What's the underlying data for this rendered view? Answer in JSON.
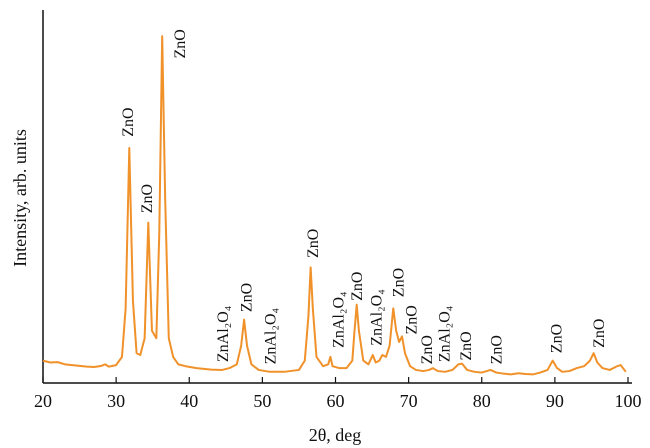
{
  "chart_data": {
    "type": "line",
    "xlabel": "2θ, deg",
    "ylabel": "Intensity, arb. units",
    "xlim": [
      20,
      100
    ],
    "xticks": [
      20,
      30,
      40,
      50,
      60,
      70,
      80,
      90,
      100
    ],
    "ylim": [
      0,
      100
    ],
    "x": [
      20,
      21,
      22,
      23,
      24,
      25,
      26,
      27,
      28,
      28.5,
      29,
      30,
      30.8,
      31.3,
      31.8,
      32.3,
      32.8,
      33.3,
      33.9,
      34.4,
      34.9,
      35.5,
      35.9,
      36.3,
      36.7,
      37.2,
      37.8,
      38.5,
      39.5,
      41,
      43,
      44.5,
      45.5,
      46.5,
      47.1,
      47.5,
      47.9,
      48.5,
      49.5,
      51,
      53,
      55,
      55.8,
      56.3,
      56.6,
      56.9,
      57.4,
      58.3,
      59,
      59.3,
      59.6,
      60.5,
      61.5,
      62.3,
      62.6,
      62.9,
      63.2,
      63.8,
      64.5,
      65.1,
      65.5,
      66,
      66.4,
      66.9,
      67.4,
      67.9,
      68.3,
      68.7,
      69.1,
      69.5,
      70.2,
      71,
      72,
      72.8,
      73.3,
      74,
      75,
      76,
      76.8,
      77.3,
      78,
      79,
      80,
      81.2,
      82,
      83,
      84,
      85,
      86,
      87,
      88,
      89,
      89.7,
      90.3,
      91,
      92,
      93,
      94,
      94.8,
      95.3,
      95.8,
      96.5,
      97.5,
      98.5,
      99,
      99.7
    ],
    "series": [
      {
        "color": "#f0912a",
        "values": [
          6,
          5.5,
          5.6,
          5,
          4.8,
          4.6,
          4.4,
          4.3,
          4.6,
          5,
          4.4,
          4.8,
          7,
          20,
          63,
          22,
          8,
          7.5,
          12,
          43,
          14,
          12,
          40,
          93,
          50,
          12,
          7,
          5,
          4.5,
          4,
          3.6,
          3.5,
          4,
          5,
          10,
          17,
          10,
          5,
          3.5,
          3,
          3,
          3.5,
          6,
          18,
          31,
          20,
          7,
          4.5,
          5,
          7,
          4.5,
          4,
          4,
          6,
          14,
          21,
          14,
          6,
          5,
          7.5,
          5.5,
          6,
          7.5,
          7,
          10,
          20,
          14,
          11,
          12.5,
          8,
          4.5,
          3.5,
          3.2,
          3.5,
          4,
          3.2,
          3,
          3.5,
          5,
          5.2,
          3.5,
          3,
          2.8,
          3.5,
          2.8,
          2.5,
          2.3,
          2.6,
          2.4,
          2.3,
          2.8,
          3.5,
          6,
          4,
          3,
          3.2,
          4,
          4.5,
          6,
          8,
          5.5,
          4,
          3.5,
          4.5,
          4.8,
          3
        ]
      }
    ],
    "annotations": [
      {
        "text": "ZnO",
        "x": 31.8,
        "y": 66
      },
      {
        "text": "ZnO",
        "x": 34.4,
        "y": 45.5
      },
      {
        "text": "ZnO",
        "x": 38.9,
        "y": 87
      },
      {
        "text": "ZnAl₂O₄",
        "x": 44.8,
        "y": 5.6
      },
      {
        "text": "ZnO",
        "x": 48.0,
        "y": 19
      },
      {
        "text": "ZnAl₂O₄",
        "x": 51.3,
        "y": 5
      },
      {
        "text": "ZnO",
        "x": 57.1,
        "y": 33.5
      },
      {
        "text": "ZnAl₂O₄",
        "x": 60.6,
        "y": 9.4
      },
      {
        "text": "ZnO",
        "x": 63.1,
        "y": 22
      },
      {
        "text": "ZnAl₂O₄",
        "x": 65.8,
        "y": 10
      },
      {
        "text": "ZnO",
        "x": 68.8,
        "y": 23
      },
      {
        "text": "ZnO",
        "x": 70.6,
        "y": 13
      },
      {
        "text": "ZnO",
        "x": 72.7,
        "y": 5
      },
      {
        "text": "ZnAl₂O₄",
        "x": 75.1,
        "y": 5.6
      },
      {
        "text": "ZnO",
        "x": 78.0,
        "y": 6
      },
      {
        "text": "ZnO",
        "x": 82.2,
        "y": 5
      },
      {
        "text": "ZnO",
        "x": 90.4,
        "y": 8
      },
      {
        "text": "ZnO",
        "x": 96.2,
        "y": 9.4
      }
    ]
  }
}
